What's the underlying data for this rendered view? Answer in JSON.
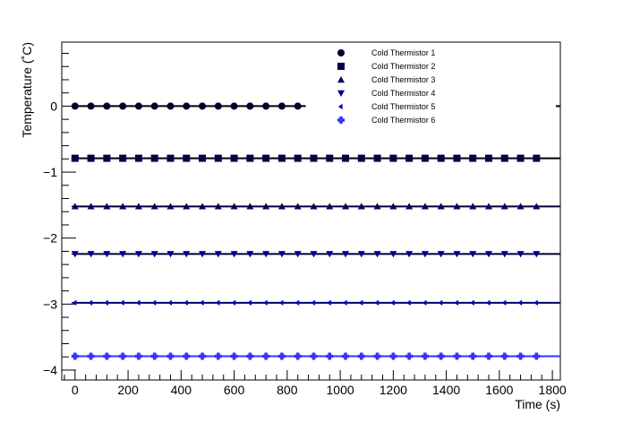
{
  "chart_data": {
    "type": "scatter",
    "xlabel": "Time (s)",
    "ylabel": "Temperature (˚C)",
    "xlim": [
      -50,
      1830
    ],
    "ylim": [
      -4.15,
      0.97
    ],
    "x_ticks": [
      0,
      200,
      400,
      600,
      800,
      1000,
      1200,
      1400,
      1600,
      1800
    ],
    "y_ticks": [
      0,
      -1,
      -2,
      -3,
      -4
    ],
    "x_tick_labels": [
      "0",
      "200",
      "400",
      "600",
      "800",
      "1000",
      "1200",
      "1400",
      "1600",
      "1800"
    ],
    "y_tick_labels": [
      "0",
      "−1",
      "−2",
      "−3",
      "−4"
    ],
    "grid": false,
    "legend_position": "top-center",
    "series": [
      {
        "name": "Cold Thermistor 1",
        "marker": "circle",
        "color": "#000033",
        "line_color": "#000000",
        "line_x": [
          0,
          870
        ],
        "x_start": 0,
        "x_end": 840,
        "x_step": 60,
        "y": 0.0
      },
      {
        "name": "Cold Thermistor 2",
        "marker": "square",
        "color": "#000044",
        "line_color": "#000000",
        "line_x": [
          -10,
          1830
        ],
        "x_start": 0,
        "x_end": 1740,
        "x_step": 60,
        "y": -0.79
      },
      {
        "name": "Cold Thermistor 3",
        "marker": "triangle-up",
        "color": "#000066",
        "line_color": "#000033",
        "line_x": [
          -10,
          1830
        ],
        "x_start": 0,
        "x_end": 1740,
        "x_step": 60,
        "y": -1.52
      },
      {
        "name": "Cold Thermistor 4",
        "marker": "triangle-down",
        "color": "#000099",
        "line_color": "#000033",
        "line_x": [
          -10,
          1830
        ],
        "x_start": 0,
        "x_end": 1740,
        "x_step": 60,
        "y": -2.24
      },
      {
        "name": "Cold Thermistor 5",
        "marker": "triangle-left",
        "color": "#0000cc",
        "line_color": "#000066",
        "line_x": [
          -10,
          1830
        ],
        "x_start": 0,
        "x_end": 1740,
        "x_step": 60,
        "y": -2.98
      },
      {
        "name": "Cold Thermistor 6",
        "marker": "cross",
        "color": "#3333ff",
        "line_color": "#3333ff",
        "line_x": [
          -10,
          1830
        ],
        "x_start": 0,
        "x_end": 1740,
        "x_step": 60,
        "y": -3.79
      }
    ]
  }
}
